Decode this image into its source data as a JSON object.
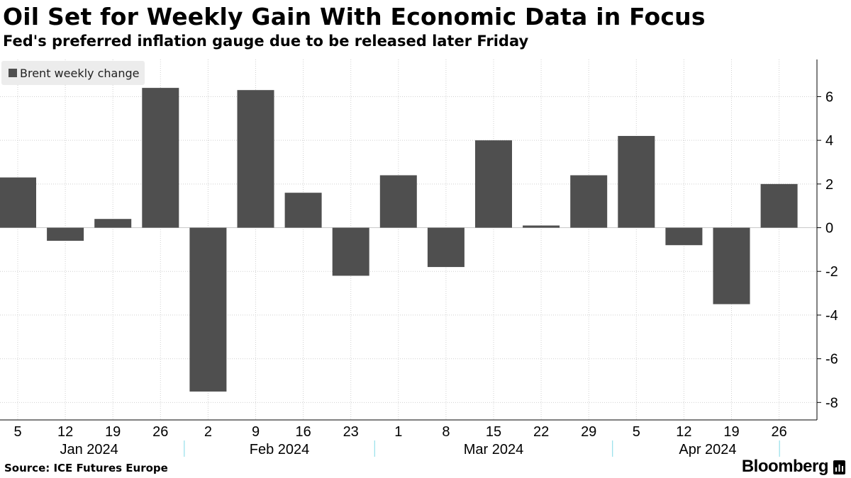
{
  "header": {
    "title": "Oil Set for Weekly Gain With Economic Data in Focus",
    "subtitle": "Fed's preferred inflation gauge due to be released later Friday"
  },
  "footer": {
    "source": "Source: ICE Futures Europe",
    "brand": "Bloomberg"
  },
  "colors": {
    "bar": "#4f4f4f",
    "grid": "#d0d0d0",
    "axis": "#000000",
    "legend_bg": "#ececec"
  },
  "chart_data": {
    "type": "bar",
    "legend": [
      "Brent weekly change"
    ],
    "categories": [
      "5",
      "12",
      "19",
      "26",
      "2",
      "9",
      "16",
      "23",
      "1",
      "8",
      "15",
      "22",
      "29",
      "5",
      "12",
      "19",
      "26"
    ],
    "months": [
      {
        "label": "Jan 2024",
        "start": 0,
        "end": 3
      },
      {
        "label": "Feb 2024",
        "start": 4,
        "end": 7
      },
      {
        "label": "Mar 2024",
        "start": 8,
        "end": 12
      },
      {
        "label": "Apr 2024",
        "start": 13,
        "end": 16
      }
    ],
    "series": [
      {
        "name": "Brent weekly change",
        "values": [
          2.3,
          -0.6,
          0.4,
          6.4,
          -7.5,
          6.3,
          1.6,
          -2.2,
          2.4,
          -1.8,
          4.0,
          0.1,
          2.4,
          4.2,
          -0.8,
          -3.5,
          2.0
        ]
      }
    ],
    "yticks": [
      6,
      4,
      2,
      0,
      -2,
      -4,
      -6,
      -8
    ],
    "ytick_labels": [
      "6",
      "4",
      "2",
      "0",
      "-2",
      "-4",
      "-6",
      "-8"
    ],
    "ylim": [
      -8.8,
      7.7
    ],
    "yaxis_position": "right",
    "grid": true,
    "legend_position": "top-left"
  }
}
